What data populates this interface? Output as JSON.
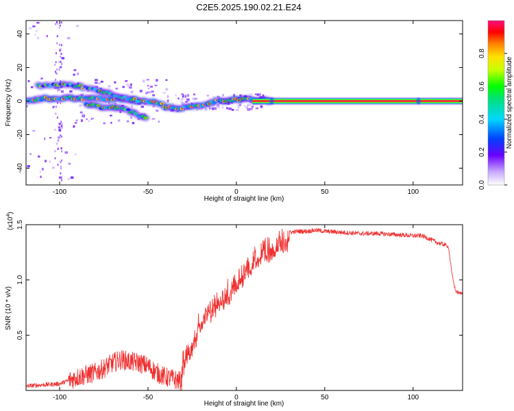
{
  "title": "C2E5.2025.190.02.21.E24",
  "chart_data": [
    {
      "type": "heatmap",
      "xlabel": "Height of straight line (km)",
      "ylabel": "Frequency (Hz)",
      "xlim": [
        -119,
        128
      ],
      "ylim": [
        -50,
        48
      ],
      "xticks": [
        -100,
        -50,
        0,
        50,
        100
      ],
      "yticks": [
        -40,
        -20,
        0,
        20,
        40
      ],
      "colorbar": {
        "label": "Normalized spectral amplitude",
        "range": [
          0.0,
          1.0
        ],
        "ticks": [
          0.0,
          0.2,
          0.4,
          0.6,
          0.8
        ]
      },
      "tracks": [
        {
          "name": "main",
          "points": [
            [
              -119,
              0.5
            ],
            [
              -105,
              1.5
            ],
            [
              -95,
              2
            ],
            [
              -85,
              1.5
            ],
            [
              -75,
              1.5
            ],
            [
              -65,
              1
            ],
            [
              -55,
              0
            ],
            [
              -45,
              -1
            ],
            [
              -38,
              -4
            ],
            [
              -30,
              -4
            ],
            [
              -22,
              -3
            ],
            [
              -15,
              -1
            ],
            [
              -8,
              0.5
            ],
            [
              0,
              1
            ],
            [
              10,
              0.5
            ],
            [
              20,
              0
            ],
            [
              128,
              0
            ]
          ]
        },
        {
          "name": "upper",
          "points": [
            [
              -112,
              9
            ],
            [
              -100,
              10
            ],
            [
              -90,
              9
            ],
            [
              -80,
              7
            ],
            [
              -70,
              4
            ],
            [
              -62,
              2
            ],
            [
              -55,
              0
            ]
          ]
        },
        {
          "name": "lower",
          "points": [
            [
              -85,
              -2
            ],
            [
              -75,
              -4
            ],
            [
              -65,
              -4
            ],
            [
              -58,
              -7
            ],
            [
              -50,
              -11
            ]
          ]
        }
      ]
    },
    {
      "type": "line",
      "xlabel": "Height of straight line (km)",
      "ylabel": "SNR (10 * v/v)",
      "yscale_label": "(x10",
      "yscale_exp": "4",
      "xlim": [
        -119,
        128
      ],
      "ylim": [
        0,
        1.5
      ],
      "xticks": [
        -100,
        -50,
        0,
        50,
        100
      ],
      "yticks": [
        0.5,
        1.0,
        1.5
      ],
      "ytick_labels": [
        "0.5",
        "1.0",
        "1.5"
      ],
      "color": "#f03030",
      "x": [
        -119,
        -110,
        -100,
        -90,
        -80,
        -75,
        -70,
        -65,
        -60,
        -55,
        -50,
        -45,
        -40,
        -35,
        -31,
        -30,
        -25,
        -20,
        -15,
        -10,
        -5,
        0,
        5,
        10,
        15,
        20,
        25,
        30,
        35,
        40,
        45,
        50,
        60,
        70,
        80,
        90,
        100,
        105,
        108,
        112,
        115,
        118,
        120,
        122,
        124,
        126,
        128
      ],
      "y": [
        0.04,
        0.05,
        0.06,
        0.12,
        0.16,
        0.2,
        0.25,
        0.28,
        0.26,
        0.25,
        0.22,
        0.16,
        0.12,
        0.1,
        0.08,
        0.35,
        0.52,
        0.68,
        0.8,
        0.9,
        0.95,
        1.05,
        1.17,
        1.27,
        1.32,
        1.38,
        1.41,
        1.43,
        1.44,
        1.44,
        1.45,
        1.44,
        1.43,
        1.42,
        1.42,
        1.41,
        1.4,
        1.4,
        1.38,
        1.35,
        1.33,
        1.32,
        1.3,
        1.05,
        0.9,
        0.88,
        0.88
      ]
    }
  ]
}
